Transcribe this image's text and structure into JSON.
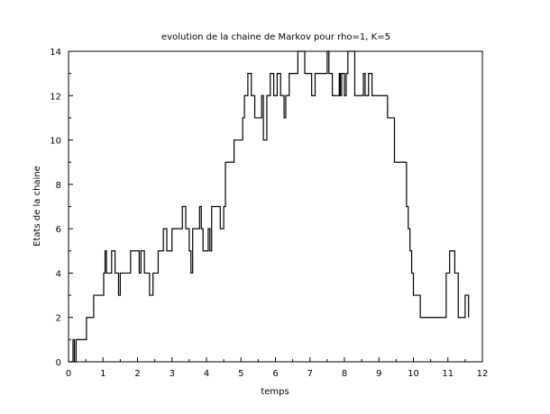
{
  "chart_data": {
    "type": "line",
    "title": "evolution de la chaine de Markov pour rho=1, K=5",
    "xlabel": "temps",
    "ylabel": "Etats de la chaine",
    "xlim": [
      0,
      12
    ],
    "ylim": [
      0,
      14
    ],
    "x_ticks": [
      "0",
      "1",
      "2",
      "3",
      "4",
      "5",
      "6",
      "7",
      "8",
      "9",
      "10",
      "11",
      "12"
    ],
    "y_ticks": [
      "0",
      "2",
      "4",
      "6",
      "8",
      "10",
      "12",
      "14"
    ],
    "grid": false,
    "series": [
      {
        "step": true,
        "color": "#000000",
        "x": [
          0,
          0.13,
          0.17,
          0.22,
          0.3,
          0.52,
          0.73,
          0.97,
          1.02,
          1.06,
          1.1,
          1.15,
          1.25,
          1.35,
          1.45,
          1.5,
          1.6,
          1.8,
          2.0,
          2.05,
          2.1,
          2.2,
          2.3,
          2.35,
          2.45,
          2.6,
          2.75,
          2.85,
          3.0,
          3.2,
          3.3,
          3.4,
          3.5,
          3.55,
          3.6,
          3.7,
          3.8,
          3.85,
          3.9,
          4.0,
          4.05,
          4.1,
          4.15,
          4.2,
          4.3,
          4.4,
          4.5,
          4.55,
          4.6,
          4.65,
          4.8,
          4.95,
          5.05,
          5.1,
          5.2,
          5.3,
          5.4,
          5.45,
          5.6,
          5.65,
          5.75,
          5.8,
          5.85,
          5.95,
          6.05,
          6.15,
          6.25,
          6.3,
          6.4,
          6.65,
          6.85,
          7.05,
          7.15,
          7.3,
          7.5,
          7.55,
          7.6,
          7.65,
          7.85,
          7.88,
          7.92,
          8.0,
          8.05,
          8.1,
          8.2,
          8.3,
          8.55,
          8.6,
          8.7,
          8.8,
          8.95,
          9.05,
          9.15,
          9.25,
          9.45,
          9.55,
          9.8,
          9.85,
          9.9,
          9.95,
          10.0,
          10.1,
          10.2,
          10.4,
          10.95,
          11.05,
          11.2,
          11.3,
          11.5,
          11.6
        ],
        "y": [
          0,
          1,
          0,
          1,
          1,
          2,
          3,
          3,
          4,
          5,
          4,
          4,
          5,
          4,
          3,
          4,
          4,
          5,
          5,
          4,
          5,
          4,
          4,
          3,
          4,
          5,
          6,
          5,
          6,
          6,
          7,
          6,
          5,
          4,
          6,
          6,
          7,
          6,
          5,
          5,
          6,
          5,
          7,
          7,
          7,
          6,
          7,
          9,
          9,
          9,
          10,
          10,
          11,
          12,
          13,
          12,
          11,
          11,
          12,
          10,
          12,
          12,
          13,
          12,
          13,
          12,
          11,
          12,
          13,
          14,
          13,
          12,
          13,
          13,
          14,
          13,
          13,
          12,
          13,
          12,
          13,
          12,
          13,
          14,
          14,
          12,
          13,
          12,
          13,
          12,
          12,
          12,
          12,
          11,
          9,
          9,
          7,
          6,
          5,
          4,
          3,
          3,
          2,
          2,
          4,
          5,
          4,
          2,
          3,
          2
        ],
        "x_end": 11.6
      }
    ]
  }
}
